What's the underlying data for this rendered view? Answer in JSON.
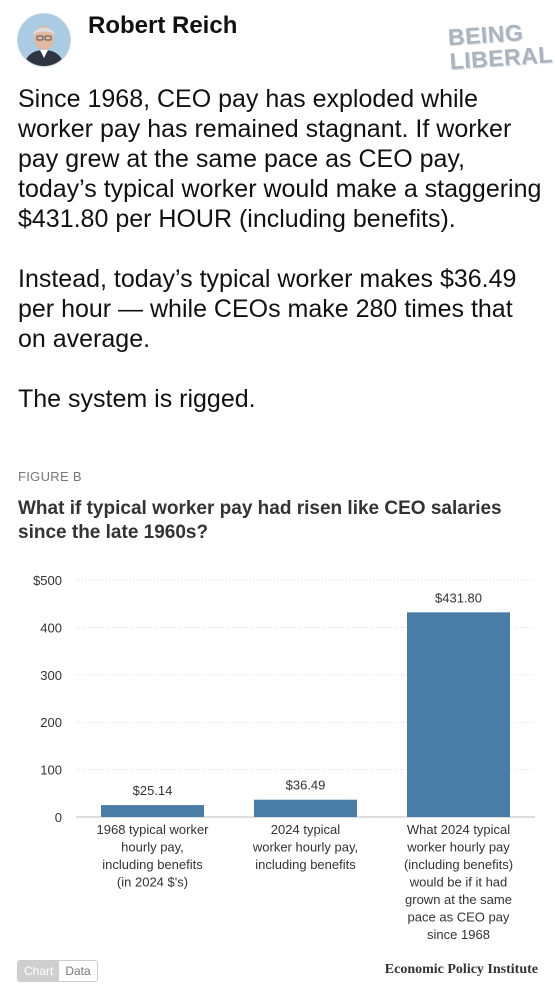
{
  "post": {
    "author": "Robert Reich",
    "watermark": [
      "BEING",
      "LIBERAL"
    ],
    "paragraphs": [
      "Since 1968, CEO pay has exploded while worker pay has remained stagnant. If worker pay grew at the same pace as CEO pay, today’s typical worker would make a staggering $431.80 per HOUR (including benefits).",
      "Instead, today’s typical worker makes $36.49 per hour — while CEOs make 280 times that on average.",
      "The system is rigged."
    ]
  },
  "figure": {
    "label": "FIGURE B",
    "title": "What if typical worker pay had risen like CEO salaries since the late 1960s?",
    "tabs": {
      "chart": "Chart",
      "data": "Data"
    },
    "source": "Economic Policy Institute"
  },
  "chart_data": {
    "type": "bar",
    "title": "What if typical worker pay had risen like CEO salaries since the late 1960s?",
    "categories": [
      "1968 typical worker hourly pay, including benefits (in 2024 $'s)",
      "2024 typical worker hourly pay, including benefits",
      "What 2024 typical worker hourly pay (including benefits) would be if it had grown at the same pace as CEO pay since 1968"
    ],
    "category_lines": [
      [
        "1968 typical worker",
        "hourly pay,",
        "including benefits",
        "(in 2024 $'s)"
      ],
      [
        "2024 typical",
        "worker hourly pay,",
        "including benefits"
      ],
      [
        "What 2024 typical",
        "worker hourly pay",
        "(including benefits)",
        "would be if it had",
        "grown at the same",
        "pace as CEO pay",
        "since 1968"
      ]
    ],
    "values": [
      25.14,
      36.49,
      431.8
    ],
    "value_labels": [
      "$25.14",
      "$36.49",
      "$431.80"
    ],
    "yticks": [
      0,
      100,
      200,
      300,
      400,
      500
    ],
    "ytick_labels": [
      "0",
      "100",
      "200",
      "300",
      "400",
      "$500"
    ],
    "ylim": [
      0,
      500
    ],
    "xlabel": "",
    "ylabel": "",
    "grid": true,
    "bar_color": "#4a7da6"
  }
}
